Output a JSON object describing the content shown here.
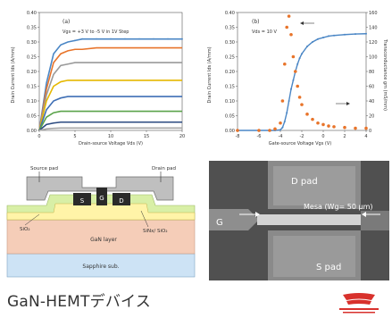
{
  "caption": "GaN-HEMTデバイス",
  "chart_a": {
    "panel_label": "(a)",
    "legend_text": "Vgs = +3 V to -5 V in 1V Step",
    "xlabel": "Drain-source Voltage Vds (V)",
    "ylabel": "Drain Current Ids (A/mm)",
    "x_ticks": [
      "0",
      "5",
      "10",
      "15",
      "20"
    ],
    "y_ticks": [
      "0.00",
      "0.05",
      "0.10",
      "0.15",
      "0.20",
      "0.25",
      "0.30",
      "0.35",
      "0.40"
    ]
  },
  "chart_b": {
    "panel_label": "(b)",
    "legend_text": "Vds = 10 V",
    "xlabel": "Gate-source Voltage Vgs (V)",
    "ylabel_left": "Drain Current Ids (A/mm)",
    "ylabel_right": "Transconductance gm (mS/mm)",
    "x_ticks": [
      "-8",
      "-6",
      "-4",
      "-2",
      "0",
      "2",
      "4"
    ],
    "y_ticks_left": [
      "0.00",
      "0.05",
      "0.10",
      "0.15",
      "0.20",
      "0.25",
      "0.30",
      "0.35",
      "0.40"
    ],
    "y_ticks_right": [
      "0",
      "20",
      "40",
      "60",
      "80",
      "100",
      "120",
      "140",
      "160"
    ]
  },
  "chart_data": [
    {
      "type": "line",
      "title": "",
      "xlabel": "Drain-source Voltage Vds (V)",
      "ylabel": "Drain Current Ids (A/mm)",
      "xlim": [
        0,
        20
      ],
      "ylim": [
        0,
        0.4
      ],
      "x": [
        0,
        1,
        2,
        3,
        4,
        5,
        6,
        8,
        10,
        12,
        14,
        16,
        18,
        20
      ],
      "series": [
        {
          "values": [
            0,
            0.16,
            0.26,
            0.29,
            0.3,
            0.305,
            0.31,
            0.31,
            0.31,
            0.31,
            0.31,
            0.31,
            0.31,
            0.31
          ],
          "color": "#4a86c5"
        },
        {
          "values": [
            0,
            0.14,
            0.23,
            0.26,
            0.27,
            0.275,
            0.275,
            0.28,
            0.28,
            0.28,
            0.28,
            0.28,
            0.28,
            0.28
          ],
          "color": "#e8742a"
        },
        {
          "values": [
            0,
            0.12,
            0.19,
            0.22,
            0.225,
            0.23,
            0.23,
            0.23,
            0.23,
            0.23,
            0.23,
            0.23,
            0.23,
            0.23
          ],
          "color": "#9a9a9a"
        },
        {
          "values": [
            0,
            0.1,
            0.15,
            0.165,
            0.17,
            0.17,
            0.17,
            0.17,
            0.17,
            0.17,
            0.17,
            0.17,
            0.17,
            0.17
          ],
          "color": "#e6b800"
        },
        {
          "values": [
            0,
            0.07,
            0.1,
            0.11,
            0.115,
            0.115,
            0.115,
            0.115,
            0.115,
            0.115,
            0.115,
            0.115,
            0.115,
            0.115
          ],
          "color": "#3f6fb5"
        },
        {
          "values": [
            0,
            0.045,
            0.06,
            0.065,
            0.065,
            0.065,
            0.065,
            0.065,
            0.065,
            0.065,
            0.065,
            0.065,
            0.065,
            0.065
          ],
          "color": "#5aa34a"
        },
        {
          "values": [
            0,
            0.02,
            0.025,
            0.028,
            0.028,
            0.028,
            0.028,
            0.028,
            0.028,
            0.028,
            0.028,
            0.028,
            0.028,
            0.028
          ],
          "color": "#2b4a80"
        },
        {
          "values": [
            0,
            0.005,
            0.007,
            0.008,
            0.008,
            0.008,
            0.008,
            0.008,
            0.008,
            0.008,
            0.008,
            0.008,
            0.008,
            0.008
          ],
          "color": "#a6a6a6"
        }
      ]
    },
    {
      "type": "scatter",
      "title": "",
      "xlabel": "Gate-source Voltage Vgs (V)",
      "ylabel": "Drain Current Ids (A/mm)",
      "ylabel_right": "Transconductance gm (mS/mm)",
      "xlim": [
        -8,
        4
      ],
      "ylim": [
        0,
        0.4
      ],
      "ylim_right": [
        0,
        160
      ],
      "series": [
        {
          "axis": "left",
          "color": "#4a86c5",
          "x": [
            -8,
            -6,
            -5,
            -4.5,
            -4,
            -3.8,
            -3.6,
            -3.4,
            -3.2,
            -3.0,
            -2.8,
            -2.6,
            -2.4,
            -2.2,
            -2.0,
            -1.5,
            -1.0,
            -0.5,
            0,
            0.5,
            1,
            2,
            3,
            4
          ],
          "y": [
            0,
            0,
            0,
            0,
            0.002,
            0.01,
            0.03,
            0.06,
            0.1,
            0.14,
            0.17,
            0.2,
            0.225,
            0.245,
            0.26,
            0.285,
            0.3,
            0.31,
            0.315,
            0.32,
            0.322,
            0.325,
            0.327,
            0.328
          ]
        },
        {
          "axis": "right",
          "color": "#e8742a",
          "x": [
            -8,
            -6,
            -5,
            -4.5,
            -4,
            -3.8,
            -3.6,
            -3.4,
            -3.2,
            -3.0,
            -2.8,
            -2.6,
            -2.4,
            -2.2,
            -2.0,
            -1.5,
            -1.0,
            -0.5,
            0,
            0.5,
            1,
            2,
            3,
            4
          ],
          "y": [
            0,
            0,
            0,
            2,
            10,
            40,
            90,
            140,
            155,
            130,
            100,
            80,
            60,
            45,
            35,
            22,
            15,
            10,
            8,
            6,
            5,
            4,
            3,
            3
          ]
        }
      ]
    }
  ],
  "diagram": {
    "source_pad": "Source pad",
    "drain_pad": "Drain pad",
    "s_label": "S",
    "g_label": "G",
    "d_label": "D",
    "sio2_label": "SiO₂",
    "sinx_label": "SiNx/ SiO₂",
    "gan_label": "GaN layer",
    "substrate_label": "Sapphire sub.",
    "colors": {
      "gan": "#f5cdb8",
      "sapphire": "#cde3f5",
      "passivation": "#d8efa6",
      "metal": "#2a2a2a",
      "pad": "#bfbfbf"
    }
  },
  "sem": {
    "d_pad": "D pad",
    "s_pad": "S pad",
    "g_label": "G",
    "finger_label": "Mesa (Wg= 50 μm)"
  }
}
